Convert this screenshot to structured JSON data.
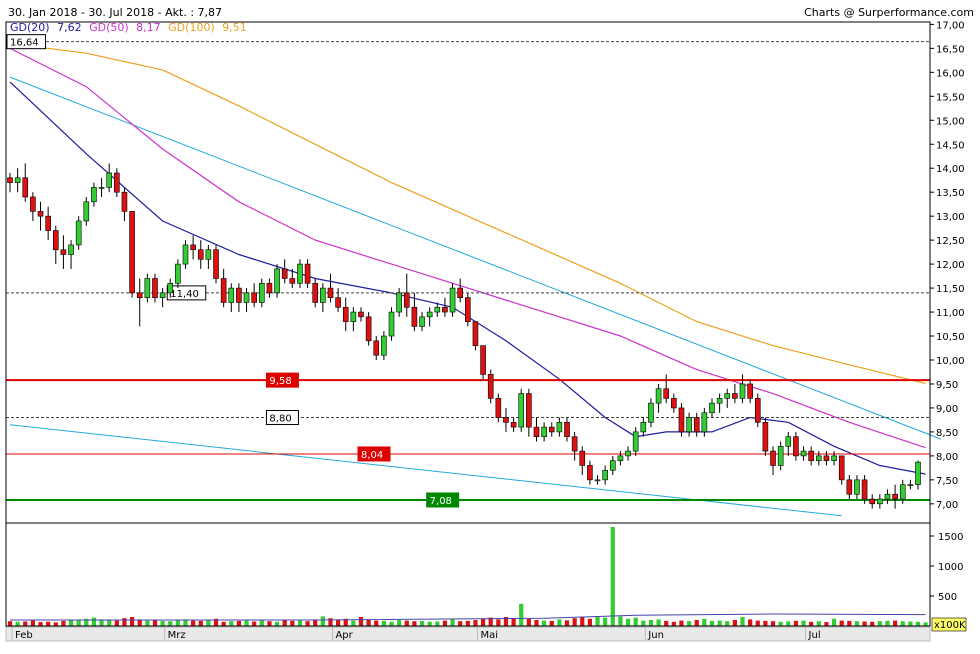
{
  "header": {
    "range_text": "30. Jan 2018 - 30. Jul 2018 - Akt. : 7,87",
    "credit": "Charts @ Surperformance.com",
    "legend": [
      {
        "label": "GD(20)",
        "value": "7,62",
        "color": "#1c1ca0"
      },
      {
        "label": "GD(50)",
        "value": "8,17",
        "color": "#cc33cc"
      },
      {
        "label": "GD(100)",
        "value": "9,51",
        "color": "#f0a020"
      }
    ]
  },
  "colors": {
    "up": "#33cc33",
    "down": "#dd1111",
    "ma20": "#1c1ca0",
    "ma50": "#cc33cc",
    "ma100": "#f0a020",
    "trend": "#22aadd",
    "resistance": "#dd0000",
    "support": "#008800",
    "volume_avg": "#4444aa"
  },
  "chart_data": {
    "type": "candlestick",
    "y_axis": {
      "ylim": [
        6.6,
        17.05
      ],
      "ticks": [
        "7,00",
        "7,50",
        "8,00",
        "8,50",
        "9,00",
        "9,50",
        "10,00",
        "10,50",
        "11,00",
        "11,50",
        "12,00",
        "12,50",
        "13,00",
        "13,50",
        "14,00",
        "14,50",
        "15,00",
        "15,50",
        "16,00",
        "16,50",
        "17,00"
      ]
    },
    "x_labels": [
      {
        "label": "Feb",
        "index": 0
      },
      {
        "label": "Mrz",
        "index": 20
      },
      {
        "label": "Apr",
        "index": 42
      },
      {
        "label": "Mai",
        "index": 61
      },
      {
        "label": "Jun",
        "index": 83
      },
      {
        "label": "Jul",
        "index": 104
      }
    ],
    "candles": [
      [
        13.8,
        13.9,
        13.5,
        13.7
      ],
      [
        13.7,
        14.0,
        13.5,
        13.8
      ],
      [
        13.8,
        14.1,
        13.3,
        13.4
      ],
      [
        13.4,
        13.5,
        12.9,
        13.1
      ],
      [
        13.1,
        13.3,
        12.7,
        13.0
      ],
      [
        13.0,
        13.2,
        12.5,
        12.7
      ],
      [
        12.7,
        12.8,
        12.0,
        12.3
      ],
      [
        12.3,
        12.6,
        11.9,
        12.2
      ],
      [
        12.2,
        12.5,
        11.9,
        12.4
      ],
      [
        12.4,
        13.0,
        12.3,
        12.9
      ],
      [
        12.9,
        13.4,
        12.8,
        13.3
      ],
      [
        13.3,
        13.7,
        13.2,
        13.6
      ],
      [
        13.6,
        13.8,
        13.4,
        13.6
      ],
      [
        13.6,
        14.1,
        13.5,
        13.9
      ],
      [
        13.9,
        14.0,
        13.4,
        13.5
      ],
      [
        13.5,
        13.6,
        12.9,
        13.1
      ],
      [
        13.1,
        13.1,
        11.3,
        11.4
      ],
      [
        11.4,
        11.7,
        10.7,
        11.3
      ],
      [
        11.3,
        11.8,
        11.2,
        11.7
      ],
      [
        11.7,
        11.8,
        11.2,
        11.3
      ],
      [
        11.3,
        11.5,
        11.1,
        11.4
      ],
      [
        11.4,
        11.7,
        11.3,
        11.6
      ],
      [
        11.6,
        12.1,
        11.5,
        12.0
      ],
      [
        12.0,
        12.5,
        11.9,
        12.4
      ],
      [
        12.4,
        12.6,
        12.1,
        12.3
      ],
      [
        12.3,
        12.5,
        11.9,
        12.1
      ],
      [
        12.1,
        12.4,
        11.9,
        12.3
      ],
      [
        12.3,
        12.4,
        11.6,
        11.7
      ],
      [
        11.7,
        11.9,
        11.1,
        11.2
      ],
      [
        11.2,
        11.6,
        11.0,
        11.5
      ],
      [
        11.5,
        11.6,
        11.0,
        11.2
      ],
      [
        11.2,
        11.5,
        11.0,
        11.4
      ],
      [
        11.4,
        11.6,
        11.1,
        11.2
      ],
      [
        11.2,
        11.7,
        11.1,
        11.6
      ],
      [
        11.6,
        11.7,
        11.3,
        11.4
      ],
      [
        11.4,
        12.0,
        11.3,
        11.9
      ],
      [
        11.9,
        12.1,
        11.6,
        11.7
      ],
      [
        11.7,
        11.9,
        11.5,
        11.6
      ],
      [
        11.6,
        12.1,
        11.5,
        12.0
      ],
      [
        12.0,
        12.1,
        11.5,
        11.6
      ],
      [
        11.6,
        11.7,
        11.1,
        11.2
      ],
      [
        11.2,
        11.6,
        11.0,
        11.5
      ],
      [
        11.5,
        11.8,
        11.2,
        11.3
      ],
      [
        11.3,
        11.5,
        11.0,
        11.1
      ],
      [
        11.1,
        11.3,
        10.6,
        10.8
      ],
      [
        10.8,
        11.1,
        10.6,
        11.0
      ],
      [
        11.0,
        11.1,
        10.8,
        10.9
      ],
      [
        10.9,
        11.0,
        10.3,
        10.4
      ],
      [
        10.4,
        10.5,
        10.0,
        10.1
      ],
      [
        10.1,
        10.6,
        10.0,
        10.5
      ],
      [
        10.5,
        11.1,
        10.4,
        11.0
      ],
      [
        11.0,
        11.5,
        10.9,
        11.4
      ],
      [
        11.4,
        11.8,
        10.9,
        11.1
      ],
      [
        11.1,
        11.4,
        10.6,
        10.7
      ],
      [
        10.7,
        11.0,
        10.6,
        10.9
      ],
      [
        10.9,
        11.1,
        10.7,
        11.0
      ],
      [
        11.0,
        11.2,
        10.9,
        11.1
      ],
      [
        11.1,
        11.3,
        10.9,
        11.0
      ],
      [
        11.0,
        11.6,
        10.9,
        11.5
      ],
      [
        11.5,
        11.7,
        11.2,
        11.3
      ],
      [
        11.3,
        11.4,
        10.7,
        10.8
      ],
      [
        10.8,
        10.8,
        10.2,
        10.3
      ],
      [
        10.3,
        10.3,
        9.6,
        9.7
      ],
      [
        9.7,
        9.8,
        9.1,
        9.2
      ],
      [
        9.2,
        9.3,
        8.7,
        8.8
      ],
      [
        8.8,
        9.0,
        8.5,
        8.7
      ],
      [
        8.7,
        8.8,
        8.5,
        8.6
      ],
      [
        8.6,
        9.4,
        8.5,
        9.3
      ],
      [
        9.3,
        9.4,
        8.4,
        8.6
      ],
      [
        8.6,
        8.8,
        8.3,
        8.4
      ],
      [
        8.4,
        8.7,
        8.3,
        8.6
      ],
      [
        8.6,
        8.7,
        8.4,
        8.5
      ],
      [
        8.5,
        8.8,
        8.4,
        8.7
      ],
      [
        8.7,
        8.8,
        8.3,
        8.4
      ],
      [
        8.4,
        8.5,
        7.9,
        8.1
      ],
      [
        8.1,
        8.2,
        7.6,
        7.8
      ],
      [
        7.8,
        7.9,
        7.4,
        7.5
      ],
      [
        7.5,
        7.6,
        7.4,
        7.5
      ],
      [
        7.5,
        7.8,
        7.4,
        7.7
      ],
      [
        7.7,
        8.0,
        7.6,
        7.9
      ],
      [
        7.9,
        8.1,
        7.8,
        8.0
      ],
      [
        8.0,
        8.2,
        7.9,
        8.1
      ],
      [
        8.1,
        8.6,
        8.0,
        8.5
      ],
      [
        8.5,
        8.8,
        8.4,
        8.7
      ],
      [
        8.7,
        9.2,
        8.6,
        9.1
      ],
      [
        9.1,
        9.5,
        8.9,
        9.4
      ],
      [
        9.4,
        9.7,
        9.1,
        9.2
      ],
      [
        9.2,
        9.3,
        8.9,
        9.0
      ],
      [
        9.0,
        9.1,
        8.4,
        8.5
      ],
      [
        8.5,
        8.9,
        8.4,
        8.8
      ],
      [
        8.8,
        8.9,
        8.4,
        8.5
      ],
      [
        8.5,
        9.0,
        8.4,
        8.9
      ],
      [
        8.9,
        9.2,
        8.8,
        9.1
      ],
      [
        9.1,
        9.3,
        8.9,
        9.2
      ],
      [
        9.2,
        9.4,
        9.0,
        9.3
      ],
      [
        9.3,
        9.5,
        9.1,
        9.2
      ],
      [
        9.2,
        9.7,
        9.1,
        9.5
      ],
      [
        9.5,
        9.6,
        9.1,
        9.2
      ],
      [
        9.2,
        9.3,
        8.6,
        8.7
      ],
      [
        8.7,
        8.8,
        8.0,
        8.1
      ],
      [
        8.1,
        8.2,
        7.6,
        7.8
      ],
      [
        7.8,
        8.3,
        7.7,
        8.2
      ],
      [
        8.2,
        8.5,
        8.0,
        8.4
      ],
      [
        8.4,
        8.5,
        7.9,
        8.0
      ],
      [
        8.0,
        8.2,
        7.9,
        8.1
      ],
      [
        8.1,
        8.2,
        7.8,
        7.9
      ],
      [
        7.9,
        8.1,
        7.8,
        8.0
      ],
      [
        8.0,
        8.1,
        7.8,
        7.9
      ],
      [
        7.9,
        8.1,
        7.8,
        8.0
      ],
      [
        8.0,
        8.0,
        7.4,
        7.5
      ],
      [
        7.5,
        7.6,
        7.1,
        7.2
      ],
      [
        7.2,
        7.6,
        7.1,
        7.5
      ],
      [
        7.5,
        7.6,
        7.0,
        7.1
      ],
      [
        7.1,
        7.2,
        6.9,
        7.0
      ],
      [
        7.0,
        7.2,
        6.9,
        7.1
      ],
      [
        7.1,
        7.3,
        7.0,
        7.2
      ],
      [
        7.2,
        7.4,
        6.9,
        7.1
      ],
      [
        7.1,
        7.5,
        7.0,
        7.4
      ],
      [
        7.4,
        7.5,
        7.3,
        7.4
      ],
      [
        7.4,
        7.9,
        7.3,
        7.87
      ]
    ],
    "moving_averages": [
      {
        "name": "GD(20)",
        "color_key": "ma20",
        "points": [
          [
            0,
            15.8
          ],
          [
            10,
            14.3
          ],
          [
            20,
            12.9
          ],
          [
            30,
            12.2
          ],
          [
            40,
            11.7
          ],
          [
            50,
            11.4
          ],
          [
            58,
            11.1
          ],
          [
            65,
            10.4
          ],
          [
            72,
            9.6
          ],
          [
            78,
            8.8
          ],
          [
            82,
            8.4
          ],
          [
            86,
            8.5
          ],
          [
            92,
            8.5
          ],
          [
            97,
            8.8
          ],
          [
            102,
            8.7
          ],
          [
            108,
            8.2
          ],
          [
            114,
            7.8
          ],
          [
            120,
            7.62
          ]
        ]
      },
      {
        "name": "GD(50)",
        "color_key": "ma50",
        "points": [
          [
            0,
            16.5
          ],
          [
            10,
            15.7
          ],
          [
            20,
            14.4
          ],
          [
            30,
            13.3
          ],
          [
            40,
            12.5
          ],
          [
            50,
            12.0
          ],
          [
            60,
            11.5
          ],
          [
            70,
            11.0
          ],
          [
            80,
            10.5
          ],
          [
            90,
            9.8
          ],
          [
            100,
            9.3
          ],
          [
            110,
            8.7
          ],
          [
            120,
            8.17
          ]
        ]
      },
      {
        "name": "GD(100)",
        "color_key": "ma100",
        "points": [
          [
            0,
            16.6
          ],
          [
            10,
            16.4
          ],
          [
            20,
            16.05
          ],
          [
            30,
            15.3
          ],
          [
            40,
            14.5
          ],
          [
            50,
            13.7
          ],
          [
            60,
            13.0
          ],
          [
            70,
            12.3
          ],
          [
            80,
            11.6
          ],
          [
            90,
            10.8
          ],
          [
            100,
            10.3
          ],
          [
            110,
            9.9
          ],
          [
            120,
            9.51
          ]
        ]
      }
    ],
    "trend_lines": [
      {
        "from": [
          0,
          15.9
        ],
        "to": [
          122,
          8.35
        ]
      },
      {
        "from": [
          0,
          8.65
        ],
        "to": [
          109,
          6.75
        ]
      }
    ],
    "levels": [
      {
        "value": 16.64,
        "label": "16,64",
        "style": "dashed",
        "color_key": "label_plain",
        "label_at": 0
      },
      {
        "value": 11.4,
        "label": "11,40",
        "style": "dashed",
        "color_key": "label_plain",
        "label_at": 21
      },
      {
        "value": 9.58,
        "label": "9,58",
        "style": "solid-thick",
        "color_key": "resistance",
        "label_at": 34
      },
      {
        "value": 8.8,
        "label": "8,80",
        "style": "dashed",
        "color_key": "label_plain",
        "label_at": 34
      },
      {
        "value": 8.04,
        "label": "8,04",
        "style": "solid",
        "color_key": "resistance",
        "label_at": 46
      },
      {
        "value": 7.08,
        "label": "7,08",
        "style": "solid-thick",
        "color_key": "support",
        "label_at": 55
      }
    ],
    "volume": {
      "unit_label": "x100K",
      "ticks": [
        "500",
        "1000",
        "1500"
      ],
      "ylim": [
        0,
        1650
      ],
      "values": [
        80,
        70,
        75,
        90,
        65,
        70,
        60,
        85,
        95,
        100,
        120,
        140,
        110,
        95,
        90,
        130,
        150,
        110,
        90,
        100,
        85,
        80,
        95,
        110,
        90,
        85,
        100,
        120,
        70,
        80,
        85,
        90,
        75,
        95,
        80,
        70,
        100,
        85,
        90,
        80,
        110,
        160,
        130,
        100,
        120,
        90,
        150,
        110,
        90,
        85,
        70,
        100,
        90,
        80,
        85,
        70,
        75,
        90,
        110,
        80,
        85,
        100,
        120,
        140,
        110,
        150,
        130,
        370,
        120,
        100,
        90,
        85,
        110,
        95,
        130,
        150,
        120,
        160,
        140,
        1690,
        160,
        120,
        140,
        90,
        100,
        110,
        85,
        70,
        90,
        80,
        100,
        120,
        85,
        90,
        80,
        100,
        150,
        110,
        90,
        85,
        80,
        70,
        75,
        85,
        90,
        70,
        80,
        65,
        120,
        90,
        85,
        80,
        75,
        70,
        80,
        85,
        90,
        80,
        75,
        70,
        60
      ],
      "avg": [
        [
          0,
          100
        ],
        [
          40,
          100
        ],
        [
          70,
          130
        ],
        [
          82,
          180
        ],
        [
          100,
          200
        ],
        [
          120,
          190
        ]
      ]
    }
  }
}
